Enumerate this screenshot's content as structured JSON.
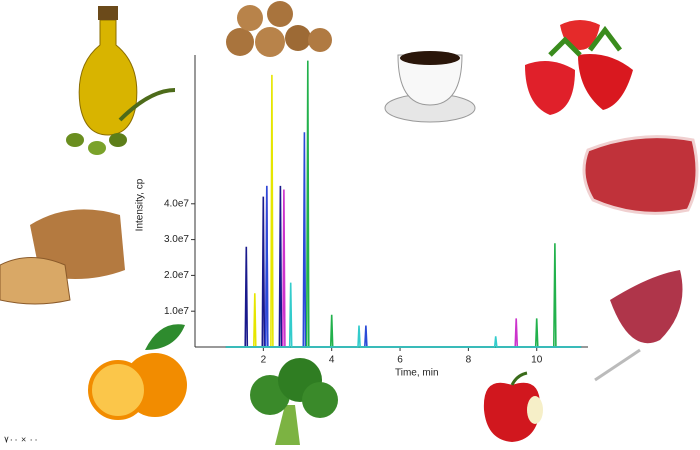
{
  "chart_data": {
    "type": "line",
    "x_label": "Time, min",
    "y_label": "Intensity, cp",
    "xlim": [
      0,
      11.5
    ],
    "xticks": [
      2,
      4,
      6,
      8,
      10
    ],
    "ylim": [
      0,
      81000000
    ],
    "yticks": [
      {
        "value": 10000000,
        "label": "1.0e7"
      },
      {
        "value": 20000000,
        "label": "2.0e7"
      },
      {
        "value": 30000000,
        "label": "3.0e7"
      },
      {
        "value": 40000000,
        "label": "4.0e7"
      }
    ],
    "series": [
      {
        "color": "#1a1a8c",
        "x": [
          0.9,
          1.47,
          1.5,
          1.53,
          1.97,
          2.0,
          2.03,
          2.47,
          2.5,
          2.53,
          11.3
        ],
        "values": [
          0,
          0,
          28000000,
          0,
          0,
          42000000,
          0,
          0,
          45000000,
          0,
          0
        ]
      },
      {
        "color": "#e6e600",
        "x": [
          0.9,
          1.72,
          1.75,
          1.78,
          2.22,
          2.25,
          2.28,
          11.3
        ],
        "values": [
          0,
          0,
          15000000,
          0,
          0,
          76000000,
          0,
          0
        ]
      },
      {
        "color": "#cc33cc",
        "x": [
          0.9,
          2.07,
          2.1,
          2.13,
          2.57,
          2.6,
          2.63,
          9.37,
          9.4,
          9.43,
          11.3
        ],
        "values": [
          0,
          0,
          45000000,
          0,
          0,
          44000000,
          0,
          0,
          8000000,
          0,
          0
        ]
      },
      {
        "color": "#2a4bd7",
        "x": [
          0.9,
          2.07,
          2.1,
          2.13,
          3.17,
          3.2,
          3.23,
          4.97,
          5.0,
          5.03,
          11.3
        ],
        "values": [
          0,
          0,
          45000000,
          0,
          0,
          60000000,
          0,
          0,
          6000000,
          0,
          0
        ]
      },
      {
        "color": "#22b14c",
        "x": [
          0.9,
          3.27,
          3.3,
          3.33,
          3.97,
          4.0,
          4.03,
          9.97,
          10.0,
          10.03,
          10.5,
          10.53,
          10.56,
          11.3
        ],
        "values": [
          0,
          0,
          80000000,
          0,
          0,
          9000000,
          0,
          0,
          8000000,
          0,
          0,
          29000000,
          0,
          0
        ]
      },
      {
        "color": "#33cccc",
        "x": [
          0.9,
          2.77,
          2.8,
          2.83,
          4.77,
          4.8,
          4.83,
          8.77,
          8.8,
          8.83,
          11.3
        ],
        "values": [
          0,
          0,
          18000000,
          0,
          0,
          6000000,
          0,
          0,
          3000000,
          0,
          0
        ]
      }
    ]
  },
  "corner_caption": "٠٠ × ٧٠٠"
}
